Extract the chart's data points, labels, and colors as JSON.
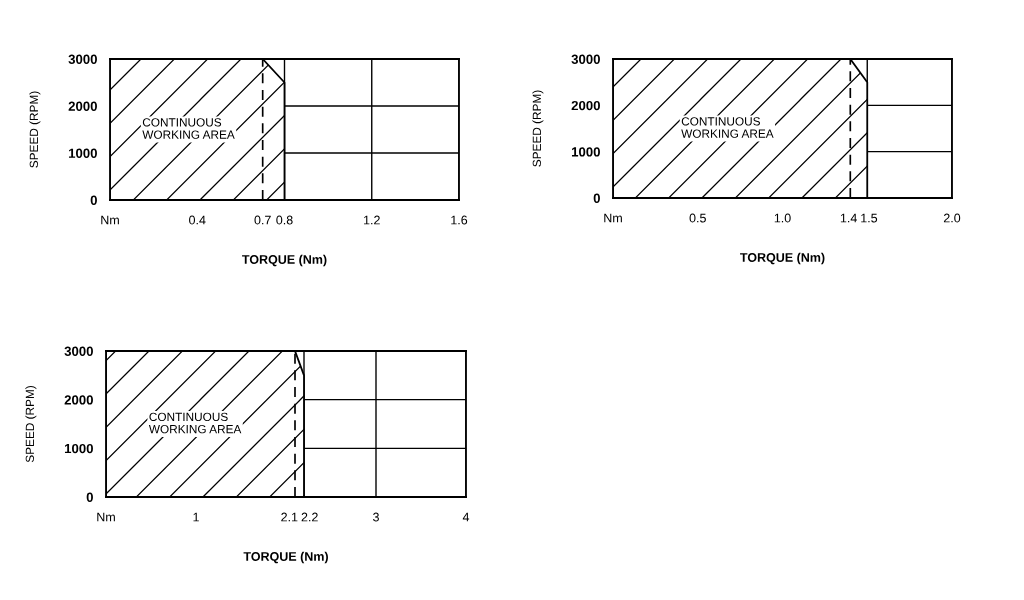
{
  "chart_data": [
    {
      "type": "area",
      "xlabel": "TORQUE (Nm)",
      "ylabel": "SPEED (RPM)",
      "x": [
        0,
        0.7,
        0.8,
        0.8
      ],
      "series": [
        {
          "color": "#000000",
          "values": [
            3000,
            3000,
            2500,
            0
          ]
        }
      ],
      "xlim": [
        0,
        1.6
      ],
      "xticks": [
        {
          "value": 0,
          "label": "Nm"
        },
        0.4,
        0.7,
        0.8,
        1.2,
        1.6
      ],
      "ylim": [
        0,
        3000
      ],
      "yticks": [
        0,
        1000,
        2000,
        3000
      ],
      "grid": true,
      "ref_lines": [
        {
          "axis": "x",
          "value": 0.7,
          "color": "#000000",
          "line_style": "dashed"
        }
      ],
      "annotations": [
        "CONTINUOUS\nWORKING AREA"
      ]
    },
    {
      "type": "area",
      "xlabel": "TORQUE (Nm)",
      "ylabel": "SPEED (RPM)",
      "x": [
        0,
        1.4,
        1.5,
        1.5
      ],
      "series": [
        {
          "color": "#000000",
          "values": [
            3000,
            3000,
            2500,
            0
          ]
        }
      ],
      "xlim": [
        0,
        2
      ],
      "xticks": [
        {
          "value": 0,
          "label": "Nm"
        },
        0.5,
        {
          "value": 1,
          "label": "1.0"
        },
        1.4,
        1.5,
        {
          "value": 2,
          "label": "2.0"
        }
      ],
      "ylim": [
        0,
        3000
      ],
      "yticks": [
        0,
        1000,
        2000,
        3000
      ],
      "grid": true,
      "ref_lines": [
        {
          "axis": "x",
          "value": 1.4,
          "color": "#000000",
          "line_style": "dashed"
        }
      ],
      "annotations": [
        "CONTINUOUS\nWORKING AREA"
      ]
    },
    {
      "type": "area",
      "xlabel": "TORQUE (Nm)",
      "ylabel": "SPEED (RPM)",
      "x": [
        0,
        2.1,
        2.2,
        2.2
      ],
      "series": [
        {
          "color": "#000000",
          "values": [
            3000,
            3000,
            2500,
            0
          ]
        }
      ],
      "xlim": [
        0,
        4
      ],
      "xticks": [
        {
          "value": 0,
          "label": "Nm"
        },
        1,
        2.1,
        2.2,
        3,
        4
      ],
      "ylim": [
        0,
        3000
      ],
      "yticks": [
        0,
        1000,
        2000,
        3000
      ],
      "grid": true,
      "ref_lines": [
        {
          "axis": "x",
          "value": 2.1,
          "color": "#000000",
          "line_style": "dashed"
        }
      ],
      "annotations": [
        "CONTINUOUS\nWORKING AREA"
      ]
    }
  ]
}
